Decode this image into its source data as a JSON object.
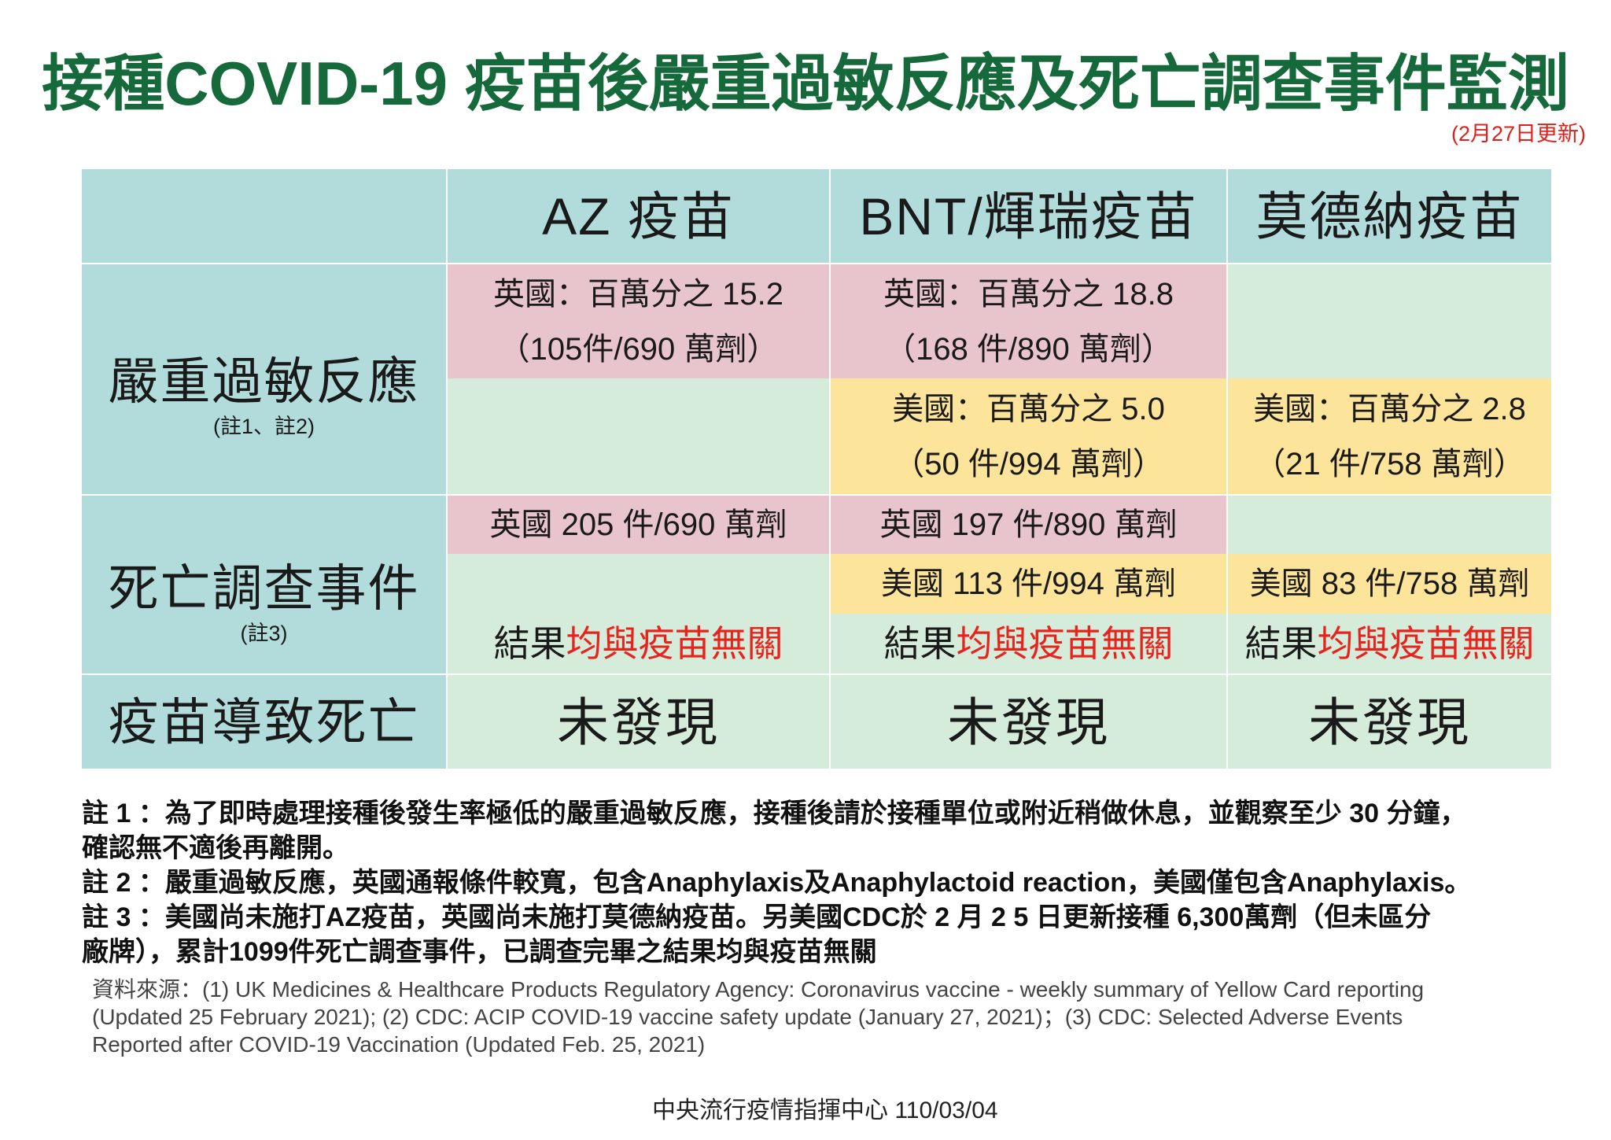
{
  "title": "接種COVID-19 疫苗後嚴重過敏反應及死亡調查事件監測",
  "updated": "(2月27日更新)",
  "colors": {
    "title": "#16693a",
    "teal": "#b1dcdb",
    "pink": "#e8c4cd",
    "green": "#d6ecda",
    "yellow": "#fde49b",
    "highlight_red": "#e8231e",
    "updated_red": "#e0201b"
  },
  "table": {
    "headers": {
      "az": "AZ 疫苗",
      "bnt": "BNT/輝瑞疫苗",
      "moderna": "莫德納疫苗"
    },
    "anaphylaxis": {
      "label": "嚴重過敏反應",
      "note_ref": "(註1、註2)",
      "az_uk": {
        "rate": "英國：百萬分之 15.2",
        "count": "（105件/690 萬劑）"
      },
      "bnt_uk": {
        "rate": "英國：百萬分之 18.8",
        "count": "（168 件/890 萬劑）"
      },
      "bnt_us": {
        "rate": "美國：百萬分之 5.0",
        "count": "（50 件/994 萬劑）"
      },
      "moderna_us": {
        "rate": "美國：百萬分之 2.8",
        "count": "（21 件/758 萬劑）"
      }
    },
    "deaths": {
      "label": "死亡調查事件",
      "note_ref": "(註3)",
      "az_uk": "英國 205 件/690 萬劑",
      "bnt_uk": "英國 197 件/890 萬劑",
      "bnt_us": "美國 113 件/994 萬劑",
      "moderna_us": "美國 83 件/758 萬劑",
      "results": [
        {
          "prefix": "結果",
          "highlight": "均與疫苗無關"
        },
        {
          "prefix": "結果",
          "highlight": "均與疫苗無關"
        },
        {
          "prefix": "結果",
          "highlight": "均與疫苗無關"
        }
      ]
    },
    "vaccine_caused_death": {
      "label": "疫苗導致死亡",
      "values": [
        "未發現",
        "未發現",
        "未發現"
      ]
    }
  },
  "notes": [
    [
      "註 1 ：為了即時處理接種後發生率極低的嚴重過敏反應，接種後請於接種單位或附近稍做休息，並觀察至少 30 分鐘，",
      "確認無不適後再離開。"
    ],
    [
      "註 2 ：嚴重過敏反應，英國通報條件較寬，包含Anaphylaxis及Anaphylactoid reaction，美國僅包含Anaphylaxis。"
    ],
    [
      "註 3 ：美國尚未施打AZ疫苗，英國尚未施打莫德納疫苗。另美國CDC於 2 月 2 5 日更新接種 6,300萬劑（但未區分",
      "廠牌），累計1099件死亡調查事件，已調查完畢之結果均與疫苗無關"
    ]
  ],
  "sources": [
    "資料來源：(1) UK Medicines & Healthcare Products Regulatory Agency: Coronavirus vaccine - weekly summary of Yellow Card reporting",
    "(Updated 25 February 2021); (2) CDC: ACIP COVID-19 vaccine safety update (January 27, 2021)；(3) CDC: Selected Adverse Events",
    "Reported after COVID-19 Vaccination (Updated Feb. 25, 2021)"
  ],
  "footer": "中央流行疫情指揮中心 110/03/04"
}
